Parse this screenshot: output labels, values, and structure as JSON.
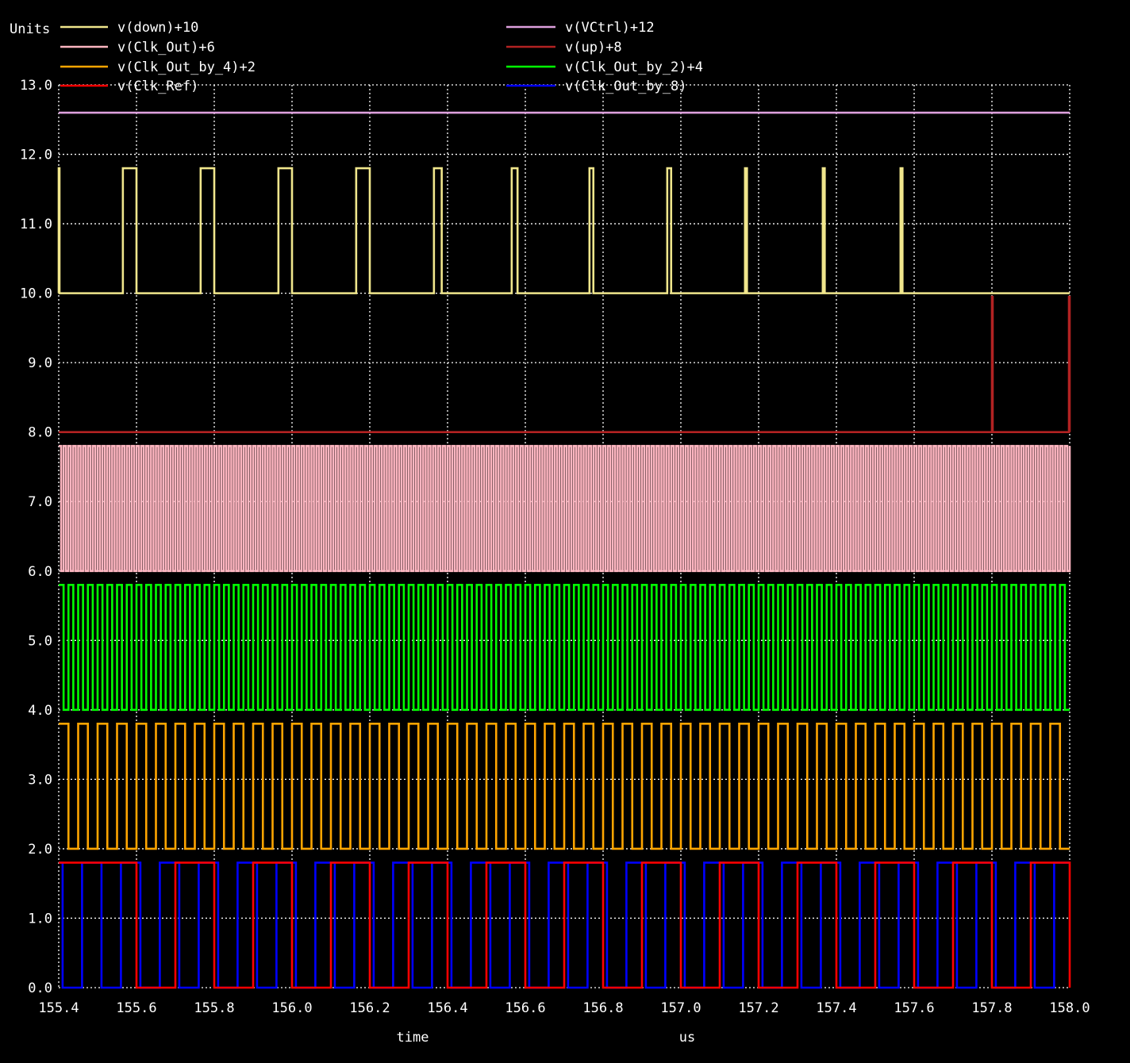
{
  "chart_data": {
    "type": "line",
    "ylabel": "Units",
    "xlabel": "time",
    "xunit": "us",
    "xlim": [
      155.4,
      158.0
    ],
    "ylim": [
      0.0,
      13.0
    ],
    "x_ticks": [
      155.4,
      155.6,
      155.8,
      156.0,
      156.2,
      156.4,
      156.6,
      156.8,
      157.0,
      157.2,
      157.4,
      157.6,
      157.8,
      158.0
    ],
    "x_tick_labels": [
      "155.4",
      "155.6",
      "155.8",
      "156.0",
      "156.2",
      "156.4",
      "156.6",
      "156.8",
      "157.0",
      "157.2",
      "157.4",
      "157.6",
      "157.8",
      "158.0"
    ],
    "y_ticks": [
      0,
      1,
      2,
      3,
      4,
      5,
      6,
      7,
      8,
      9,
      10,
      11,
      12,
      13
    ],
    "y_tick_labels": [
      "0.0",
      "1.0",
      "2.0",
      "3.0",
      "4.0",
      "5.0",
      "6.0",
      "7.0",
      "8.0",
      "9.0",
      "10.0",
      "11.0",
      "12.0",
      "13.0"
    ],
    "grid": true,
    "legend_position": "top",
    "series": [
      {
        "name": "v(down)+10",
        "color": "#f0e68c",
        "kind": "pulses",
        "low": 10.0,
        "high": 11.8,
        "pulses": [
          [
            155.4,
            155.402
          ],
          [
            155.565,
            155.6
          ],
          [
            155.765,
            155.8
          ],
          [
            155.965,
            156.0
          ],
          [
            156.165,
            156.2
          ],
          [
            156.365,
            156.385
          ],
          [
            156.565,
            156.58
          ],
          [
            156.765,
            156.775
          ],
          [
            156.965,
            156.975
          ],
          [
            157.165,
            157.17
          ],
          [
            157.365,
            157.37
          ],
          [
            157.565,
            157.57
          ]
        ]
      },
      {
        "name": "v(VCtrl)+12",
        "color": "#dda0dd",
        "kind": "constant",
        "value": 12.6
      },
      {
        "name": "v(Clk_Out)+6",
        "color": "#ffb6c1",
        "kind": "clock",
        "low": 6.0,
        "high": 7.8,
        "start": 155.4,
        "period": 0.0125,
        "duty": 0.5
      },
      {
        "name": "v(up)+8",
        "color": "#b22222",
        "kind": "pulses",
        "low": 8.0,
        "high": 9.95,
        "pulses": [
          [
            157.8,
            157.802
          ],
          [
            157.998,
            158.0
          ]
        ]
      },
      {
        "name": "v(Clk_Out_by_4)+2",
        "color": "#ffa500",
        "kind": "clock",
        "low": 2.0,
        "high": 3.8,
        "start": 155.4,
        "period": 0.05,
        "duty": 0.5
      },
      {
        "name": "v(Clk_Out_by_2)+4",
        "color": "#00ff00",
        "kind": "clock",
        "low": 4.0,
        "high": 5.8,
        "start": 155.4,
        "period": 0.025,
        "duty": 0.5
      },
      {
        "name": "v(Clk_Ref)",
        "color": "#ff0000",
        "kind": "clock",
        "low": 0.0,
        "high": 1.8,
        "start": 155.3,
        "period": 0.2,
        "duty": 0.5
      },
      {
        "name": "v(Clk_Out_by_8)",
        "color": "#0000ff",
        "kind": "clock",
        "low": 0.0,
        "high": 1.8,
        "start": 155.36,
        "period": 0.1,
        "duty": 0.5
      }
    ]
  }
}
